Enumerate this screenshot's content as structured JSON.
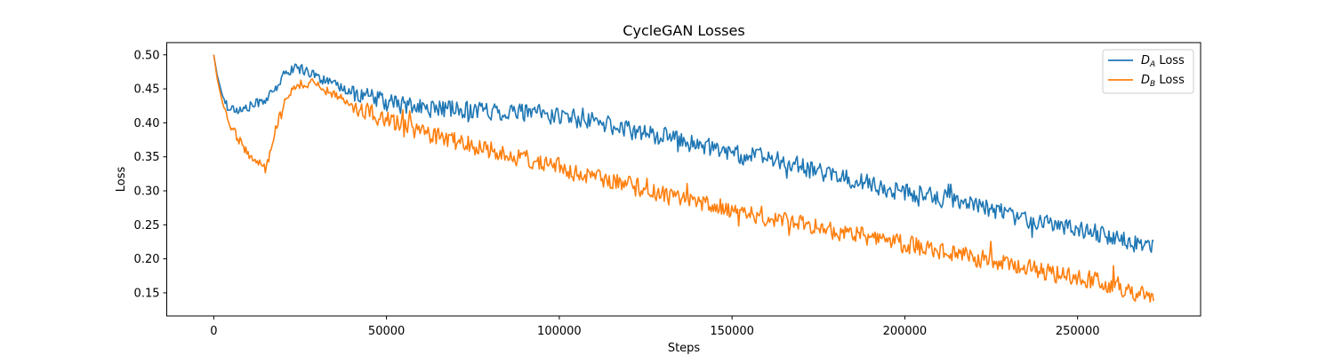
{
  "chart_data": {
    "type": "line",
    "title": "CycleGAN  Losses",
    "xlabel": "Steps",
    "ylabel": "Loss",
    "xlim": [
      -13600,
      285600
    ],
    "ylim": [
      0.116,
      0.518
    ],
    "xticks": [
      0,
      50000,
      100000,
      150000,
      200000,
      250000
    ],
    "xtick_labels": [
      "0",
      "50000",
      "100000",
      "150000",
      "200000",
      "250000"
    ],
    "yticks": [
      0.15,
      0.2,
      0.25,
      0.3,
      0.35,
      0.4,
      0.45,
      0.5
    ],
    "ytick_labels": [
      "0.15",
      "0.20",
      "0.25",
      "0.30",
      "0.35",
      "0.40",
      "0.45",
      "0.50"
    ],
    "grid": false,
    "legend": {
      "placement": "top-right",
      "entries": [
        {
          "symbol": "D",
          "subscript": "A",
          "suffix": " Loss"
        },
        {
          "symbol": "D",
          "subscript": "B",
          "suffix": " Loss"
        }
      ]
    },
    "series": [
      {
        "color": "#1f77b4",
        "x": [
          0,
          1000,
          2500,
          4000,
          6000,
          8000,
          10000,
          12000,
          14000,
          16000,
          18000,
          20000,
          22000,
          24000,
          26000,
          28000,
          30000,
          35000,
          40000,
          45000,
          50000,
          55000,
          60000,
          70000,
          80000,
          90000,
          100000,
          110000,
          120000,
          130000,
          140000,
          150000,
          160000,
          170000,
          180000,
          190000,
          200000,
          210000,
          220000,
          230000,
          240000,
          250000,
          260000,
          265000,
          270000,
          272000
        ],
        "y": [
          0.5,
          0.47,
          0.44,
          0.425,
          0.42,
          0.418,
          0.423,
          0.428,
          0.432,
          0.438,
          0.45,
          0.468,
          0.478,
          0.48,
          0.478,
          0.474,
          0.468,
          0.455,
          0.445,
          0.438,
          0.43,
          0.425,
          0.422,
          0.42,
          0.418,
          0.415,
          0.41,
          0.402,
          0.39,
          0.38,
          0.368,
          0.355,
          0.348,
          0.335,
          0.322,
          0.31,
          0.298,
          0.29,
          0.28,
          0.265,
          0.255,
          0.245,
          0.232,
          0.225,
          0.22,
          0.215
        ]
      },
      {
        "color": "#ff7f0e",
        "x": [
          0,
          1000,
          2500,
          4000,
          6000,
          8000,
          10000,
          12000,
          14000,
          15000,
          16000,
          17000,
          18000,
          20000,
          22000,
          24000,
          26000,
          28000,
          30000,
          35000,
          40000,
          45000,
          50000,
          55000,
          60000,
          70000,
          80000,
          90000,
          100000,
          110000,
          120000,
          130000,
          140000,
          150000,
          160000,
          170000,
          180000,
          190000,
          200000,
          210000,
          220000,
          230000,
          240000,
          250000,
          260000,
          265000,
          270000,
          272000
        ],
        "y": [
          0.5,
          0.465,
          0.43,
          0.405,
          0.385,
          0.37,
          0.355,
          0.345,
          0.338,
          0.34,
          0.35,
          0.37,
          0.395,
          0.425,
          0.445,
          0.455,
          0.458,
          0.458,
          0.455,
          0.443,
          0.428,
          0.415,
          0.405,
          0.395,
          0.385,
          0.372,
          0.36,
          0.348,
          0.334,
          0.32,
          0.308,
          0.295,
          0.283,
          0.272,
          0.262,
          0.252,
          0.242,
          0.232,
          0.222,
          0.212,
          0.202,
          0.192,
          0.182,
          0.172,
          0.162,
          0.155,
          0.145,
          0.135
        ]
      }
    ]
  }
}
